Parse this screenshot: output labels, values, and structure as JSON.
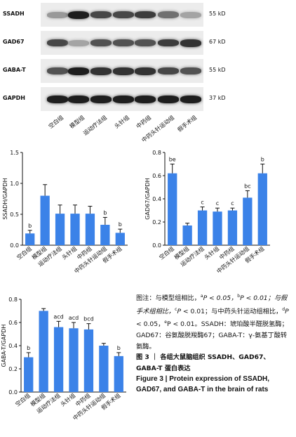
{
  "blot": {
    "rows": [
      {
        "label": "SSADH",
        "size": "55 kD",
        "intensity": [
          0.35,
          0.95,
          0.75,
          0.75,
          0.8,
          0.55,
          0.3
        ]
      },
      {
        "label": "GAD67",
        "size": "67 kD",
        "intensity": [
          0.75,
          0.3,
          0.7,
          0.7,
          0.7,
          0.8,
          0.85
        ]
      },
      {
        "label": "GABA-T",
        "size": "55 kD",
        "intensity": [
          0.7,
          0.95,
          0.85,
          0.85,
          0.85,
          0.75,
          0.7
        ]
      },
      {
        "label": "GAPDH",
        "size": "37 kD",
        "intensity": [
          0.95,
          0.95,
          0.95,
          0.95,
          0.95,
          0.95,
          0.95
        ]
      }
    ],
    "lanes": [
      "空白组",
      "模型组",
      "运动疗法组",
      "头针组",
      "中药组",
      "中药头针运动组",
      "假手术组"
    ]
  },
  "chart_data": [
    {
      "type": "bar",
      "ylabel": "SSADH/GAPDH",
      "ylim": [
        0,
        1.5
      ],
      "yticks": [
        "0.0",
        "0.5",
        "1.0",
        "1.5"
      ],
      "categories": [
        "空白组",
        "模型组",
        "运动疗法组",
        "头针组",
        "中药组",
        "中药头针运动组",
        "假手术组"
      ],
      "values": [
        0.19,
        0.8,
        0.51,
        0.51,
        0.51,
        0.33,
        0.2
      ],
      "errors": [
        0.05,
        0.18,
        0.14,
        0.14,
        0.12,
        0.12,
        0.06
      ],
      "annotations": [
        "b",
        "",
        "",
        "",
        "",
        "b",
        "b"
      ],
      "bar_color": "#3b82e8"
    },
    {
      "type": "bar",
      "ylabel": "GAD67/GAPDH",
      "ylim": [
        0,
        0.8
      ],
      "yticks": [
        "0.0",
        "0.2",
        "0.4",
        "0.6",
        "0.8"
      ],
      "categories": [
        "空白组",
        "模型组",
        "运动疗法组",
        "头针组",
        "中药组",
        "中药头针运动组",
        "假手术组"
      ],
      "values": [
        0.62,
        0.17,
        0.3,
        0.29,
        0.3,
        0.41,
        0.62
      ],
      "errors": [
        0.08,
        0.02,
        0.03,
        0.03,
        0.02,
        0.06,
        0.08
      ],
      "annotations": [
        "be",
        "",
        "c",
        "c",
        "c",
        "bc",
        "b"
      ],
      "bar_color": "#3b82e8"
    },
    {
      "type": "bar",
      "ylabel": "GABA-T/GAPDH",
      "ylim": [
        0,
        0.8
      ],
      "yticks": [
        "0.0",
        "0.2",
        "0.4",
        "0.6",
        "0.8"
      ],
      "categories": [
        "空白组",
        "模型组",
        "运动疗法组",
        "头针组",
        "中药组",
        "中药头针运动组",
        "假手术组"
      ],
      "values": [
        0.3,
        0.7,
        0.56,
        0.55,
        0.54,
        0.4,
        0.31
      ],
      "errors": [
        0.04,
        0.02,
        0.05,
        0.05,
        0.05,
        0.02,
        0.03
      ],
      "annotations": [
        "b",
        "",
        "acd",
        "acd",
        "bcd",
        "",
        "b"
      ],
      "bar_color": "#3b82e8"
    }
  ],
  "caption": {
    "line1a": "图注：与模型组相比，",
    "sup_a": "a",
    "line1b": "P < 0.05，",
    "sup_b": "b",
    "line2a": "P < 0.01；与假手术组相比，",
    "sup_c": "c",
    "line2b": "P <",
    "line3a": "0.01；与中药头针运动组相比，",
    "sup_d": "d",
    "line3b": "P <",
    "line4a": "0.05，",
    "sup_e": "e",
    "line4b": "P < 0.01。SSADH：琥珀酸半醛脱氢酶；GAD67：谷氨酸脱羧酶67；GABA-T：γ-氨基丁酸转氨酶。",
    "title_cn": "图 3 ｜ 各组大鼠脑组织 SSADH、GAD67、GABA-T 蛋白表达",
    "title_en": "Figure 3 | Protein expression of SSADH, GAD67, and GABA-T in the brain of rats"
  }
}
